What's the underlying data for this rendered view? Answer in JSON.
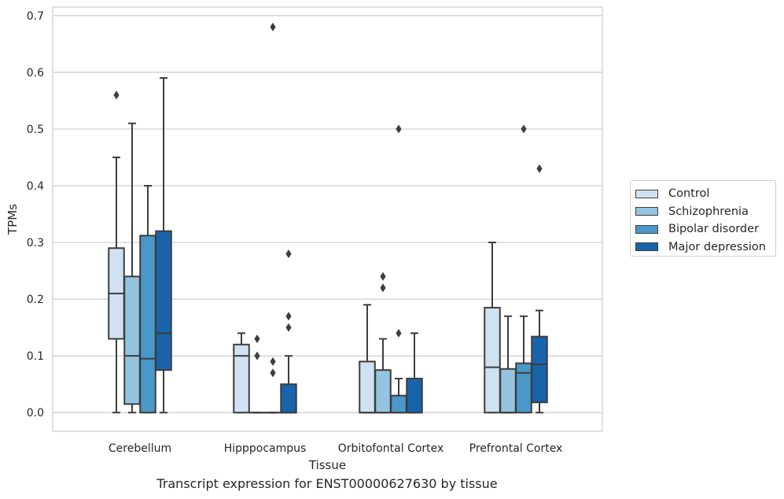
{
  "chart_data": {
    "type": "box",
    "xlabel": "Tissue",
    "ylabel": "TPMs",
    "ylim": [
      -0.033,
      0.715
    ],
    "yticks": [
      0.0,
      0.1,
      0.2,
      0.3,
      0.4,
      0.5,
      0.6,
      0.7
    ],
    "ytick_labels": [
      "0.0",
      "0.1",
      "0.2",
      "0.3",
      "0.4",
      "0.5",
      "0.6",
      "0.7"
    ],
    "grid": "horizontal",
    "legend_position": "right",
    "categories": [
      "Cerebellum",
      "Hipppocampus",
      "Orbitofontal Cortex",
      "Prefrontal Cortex"
    ],
    "series": [
      {
        "name": "Control",
        "color": "#d0e1f2",
        "boxes": [
          {
            "whislo": 0.0,
            "q1": 0.13,
            "med": 0.21,
            "q3": 0.29,
            "whishi": 0.45,
            "fliers": [
              0.56
            ]
          },
          {
            "whislo": 0.0,
            "q1": 0.0,
            "med": 0.1,
            "q3": 0.12,
            "whishi": 0.14,
            "fliers": []
          },
          {
            "whislo": 0.0,
            "q1": 0.0,
            "med": 0.0,
            "q3": 0.09,
            "whishi": 0.19,
            "fliers": []
          },
          {
            "whislo": 0.0,
            "q1": 0.0,
            "med": 0.08,
            "q3": 0.185,
            "whishi": 0.3,
            "fliers": []
          }
        ]
      },
      {
        "name": "Schizophrenia",
        "color": "#94c4df",
        "boxes": [
          {
            "whislo": 0.0,
            "q1": 0.015,
            "med": 0.1,
            "q3": 0.24,
            "whishi": 0.51,
            "fliers": []
          },
          {
            "whislo": 0.0,
            "q1": 0.0,
            "med": 0.0,
            "q3": 0.0,
            "whishi": 0.0,
            "fliers": [
              0.13,
              0.1
            ]
          },
          {
            "whislo": 0.0,
            "q1": 0.0,
            "med": 0.0,
            "q3": 0.075,
            "whishi": 0.13,
            "fliers": [
              0.24,
              0.22
            ]
          },
          {
            "whislo": 0.0,
            "q1": 0.0,
            "med": 0.0,
            "q3": 0.077,
            "whishi": 0.17,
            "fliers": []
          }
        ]
      },
      {
        "name": "Bipolar disorder",
        "color": "#4a98c9",
        "boxes": [
          {
            "whislo": 0.0,
            "q1": 0.0,
            "med": 0.095,
            "q3": 0.312,
            "whishi": 0.4,
            "fliers": []
          },
          {
            "whislo": 0.0,
            "q1": 0.0,
            "med": 0.0,
            "q3": 0.0,
            "whishi": 0.0,
            "fliers": [
              0.68,
              0.09,
              0.07
            ]
          },
          {
            "whislo": 0.0,
            "q1": 0.0,
            "med": 0.0,
            "q3": 0.03,
            "whishi": 0.06,
            "fliers": [
              0.5,
              0.14
            ]
          },
          {
            "whislo": 0.0,
            "q1": 0.0,
            "med": 0.07,
            "q3": 0.087,
            "whishi": 0.17,
            "fliers": [
              0.5
            ]
          }
        ]
      },
      {
        "name": "Major depression",
        "color": "#1764ab",
        "boxes": [
          {
            "whislo": 0.0,
            "q1": 0.075,
            "med": 0.14,
            "q3": 0.32,
            "whishi": 0.59,
            "fliers": []
          },
          {
            "whislo": 0.0,
            "q1": 0.0,
            "med": 0.0,
            "q3": 0.05,
            "whishi": 0.1,
            "fliers": [
              0.28,
              0.17,
              0.15
            ]
          },
          {
            "whislo": 0.0,
            "q1": 0.0,
            "med": 0.0,
            "q3": 0.06,
            "whishi": 0.14,
            "fliers": []
          },
          {
            "whislo": 0.0,
            "q1": 0.018,
            "med": 0.085,
            "q3": 0.134,
            "whishi": 0.18,
            "fliers": [
              0.43
            ]
          }
        ]
      }
    ]
  },
  "caption": "Transcript expression for ENST00000627630 by tissue"
}
